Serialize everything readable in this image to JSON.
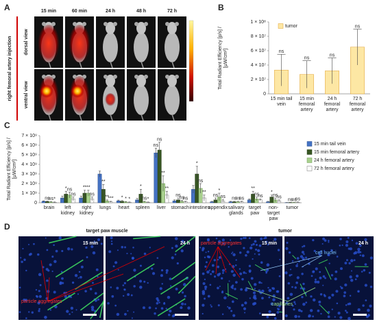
{
  "panel_a": {
    "label": "A",
    "times": [
      "15 min",
      "60 min",
      "24 h",
      "48 h",
      "72 h"
    ],
    "rows": [
      "dorsal view",
      "ventral view"
    ],
    "side_label": "right femoral artery injection"
  },
  "chart_data": [
    {
      "type": "bar",
      "panel": "B",
      "ylabel": "Total Radiant Efficiency [p/s] / [µW/cm²]",
      "categories": [
        "15 min tail vein",
        "15 min femoral artery",
        "24 h femoral artery",
        "72 h femoral artery"
      ],
      "series": [
        {
          "name": "tumor",
          "color": "#fde7a4",
          "edge": "#e0a030",
          "values": [
            33000000,
            27000000,
            32000000,
            65000000
          ],
          "errors": [
            22000000,
            19000000,
            18000000,
            25000000
          ],
          "significance": [
            "ns",
            "ns",
            "ns",
            "ns"
          ]
        }
      ],
      "ylim": [
        0,
        100000000
      ],
      "yticks": [
        0,
        {
          "value": 20000000,
          "label": "2 × 10⁷"
        },
        {
          "value": 40000000,
          "label": "4 × 10⁷"
        },
        {
          "value": 60000000,
          "label": "6 × 10⁷"
        },
        {
          "value": 80000000,
          "label": "8 × 10⁷"
        },
        {
          "value": 100000000,
          "label": "1 × 10⁸"
        }
      ],
      "legend": "upper left"
    },
    {
      "type": "bar",
      "panel": "C",
      "ylabel": "Total Radiant Efficiency [p/s] / [µW/cm²]",
      "categories": [
        "brain",
        "left kidney",
        "right kidney",
        "lungs",
        "heart",
        "spleen",
        "liver",
        "stomach",
        "intestines",
        "appendix",
        "salivary glands",
        "target paw",
        "non-target paw",
        "tumor"
      ],
      "series": [
        {
          "name": "15 min tail vein",
          "color": "#4472c4",
          "edge": "#2f528f",
          "values": [
            150000000,
            500000000,
            500000000,
            3000000000,
            200000000,
            300000000,
            5200000000,
            200000000,
            1400000000,
            100000000,
            100000000,
            300000000,
            100000000,
            20000000
          ],
          "errors": [
            50000000,
            200000000,
            200000000,
            300000000,
            80000000,
            150000000,
            500000000,
            100000000,
            400000000,
            50000000,
            50000000,
            100000000,
            50000000,
            10000000
          ],
          "significance": [
            null,
            null,
            null,
            null,
            null,
            null,
            "ns",
            null,
            null,
            null,
            null,
            null,
            null,
            null
          ]
        },
        {
          "name": "15 min femoral artery",
          "color": "#375623",
          "edge": "#263d18",
          "values": [
            120000000,
            900000000,
            1000000000,
            1400000000,
            150000000,
            900000000,
            5500000000,
            300000000,
            3000000000,
            300000000,
            100000000,
            900000000,
            600000000,
            30000000
          ],
          "errors": [
            50000000,
            300000000,
            300000000,
            500000000,
            80000000,
            500000000,
            800000000,
            200000000,
            800000000,
            200000000,
            50000000,
            300000000,
            200000000,
            10000000
          ],
          "significance": [
            "ns",
            "*",
            "**",
            "**",
            "*",
            "*",
            "ns",
            "ns",
            "*",
            "ns",
            "ns",
            "**",
            "*",
            "ns"
          ]
        },
        {
          "name": "24 h femoral artery",
          "color": "#a9d18e",
          "edge": "#6f9a55",
          "values": [
            80000000,
            800000000,
            1000000000,
            200000000,
            80000000,
            100000000,
            2000000000,
            150000000,
            1500000000,
            600000000,
            100000000,
            400000000,
            300000000,
            30000000
          ],
          "errors": [
            40000000,
            300000000,
            300000000,
            100000000,
            40000000,
            50000000,
            800000000,
            100000000,
            500000000,
            400000000,
            50000000,
            200000000,
            200000000,
            10000000
          ],
          "significance": [
            "ns",
            "ns",
            "**",
            "**",
            "*",
            "ns",
            "**",
            "ns",
            "ns",
            "*",
            "ns",
            "ns",
            "ns",
            "ns"
          ]
        },
        {
          "name": "72 h femoral artery",
          "color": "#ffffff",
          "edge": "#777777",
          "values": [
            50000000,
            400000000,
            400000000,
            100000000,
            50000000,
            50000000,
            800000000,
            100000000,
            500000000,
            200000000,
            100000000,
            300000000,
            200000000,
            60000000
          ],
          "errors": [
            30000000,
            200000000,
            200000000,
            50000000,
            30000000,
            30000000,
            400000000,
            50000000,
            300000000,
            150000000,
            50000000,
            100000000,
            100000000,
            20000000
          ],
          "significance": [
            "*",
            "ns",
            "ns",
            "***",
            "*",
            "*",
            "**",
            "ns",
            "**",
            "ns",
            "ns",
            "ns",
            "ns",
            "ns"
          ]
        }
      ],
      "ylim": [
        0,
        7000000000
      ],
      "yticks": [
        0,
        {
          "value": 1000000000,
          "label": "1 × 10⁹"
        },
        {
          "value": 2000000000,
          "label": "2 × 10⁹"
        },
        {
          "value": 3000000000,
          "label": "3 × 10⁹"
        },
        {
          "value": 4000000000,
          "label": "4 × 10⁹"
        },
        {
          "value": 5000000000,
          "label": "5 × 10⁹"
        },
        {
          "value": 6000000000,
          "label": "6 × 10⁹"
        },
        {
          "value": 7000000000,
          "label": "7 × 10⁹"
        }
      ],
      "legend": "right"
    }
  ],
  "panel_d": {
    "label": "D",
    "muscle_title": "target paw muscle",
    "tumor_title": "tumor",
    "muscle_times": [
      "15 min",
      "24 h"
    ],
    "tumor_times": [
      "15 min",
      "24 h"
    ],
    "muscle_aggregates": "particle aggregates",
    "tumor_aggregates": "particle aggregates",
    "nuclei": "cell nuclei",
    "capillaries": "capillaries"
  }
}
